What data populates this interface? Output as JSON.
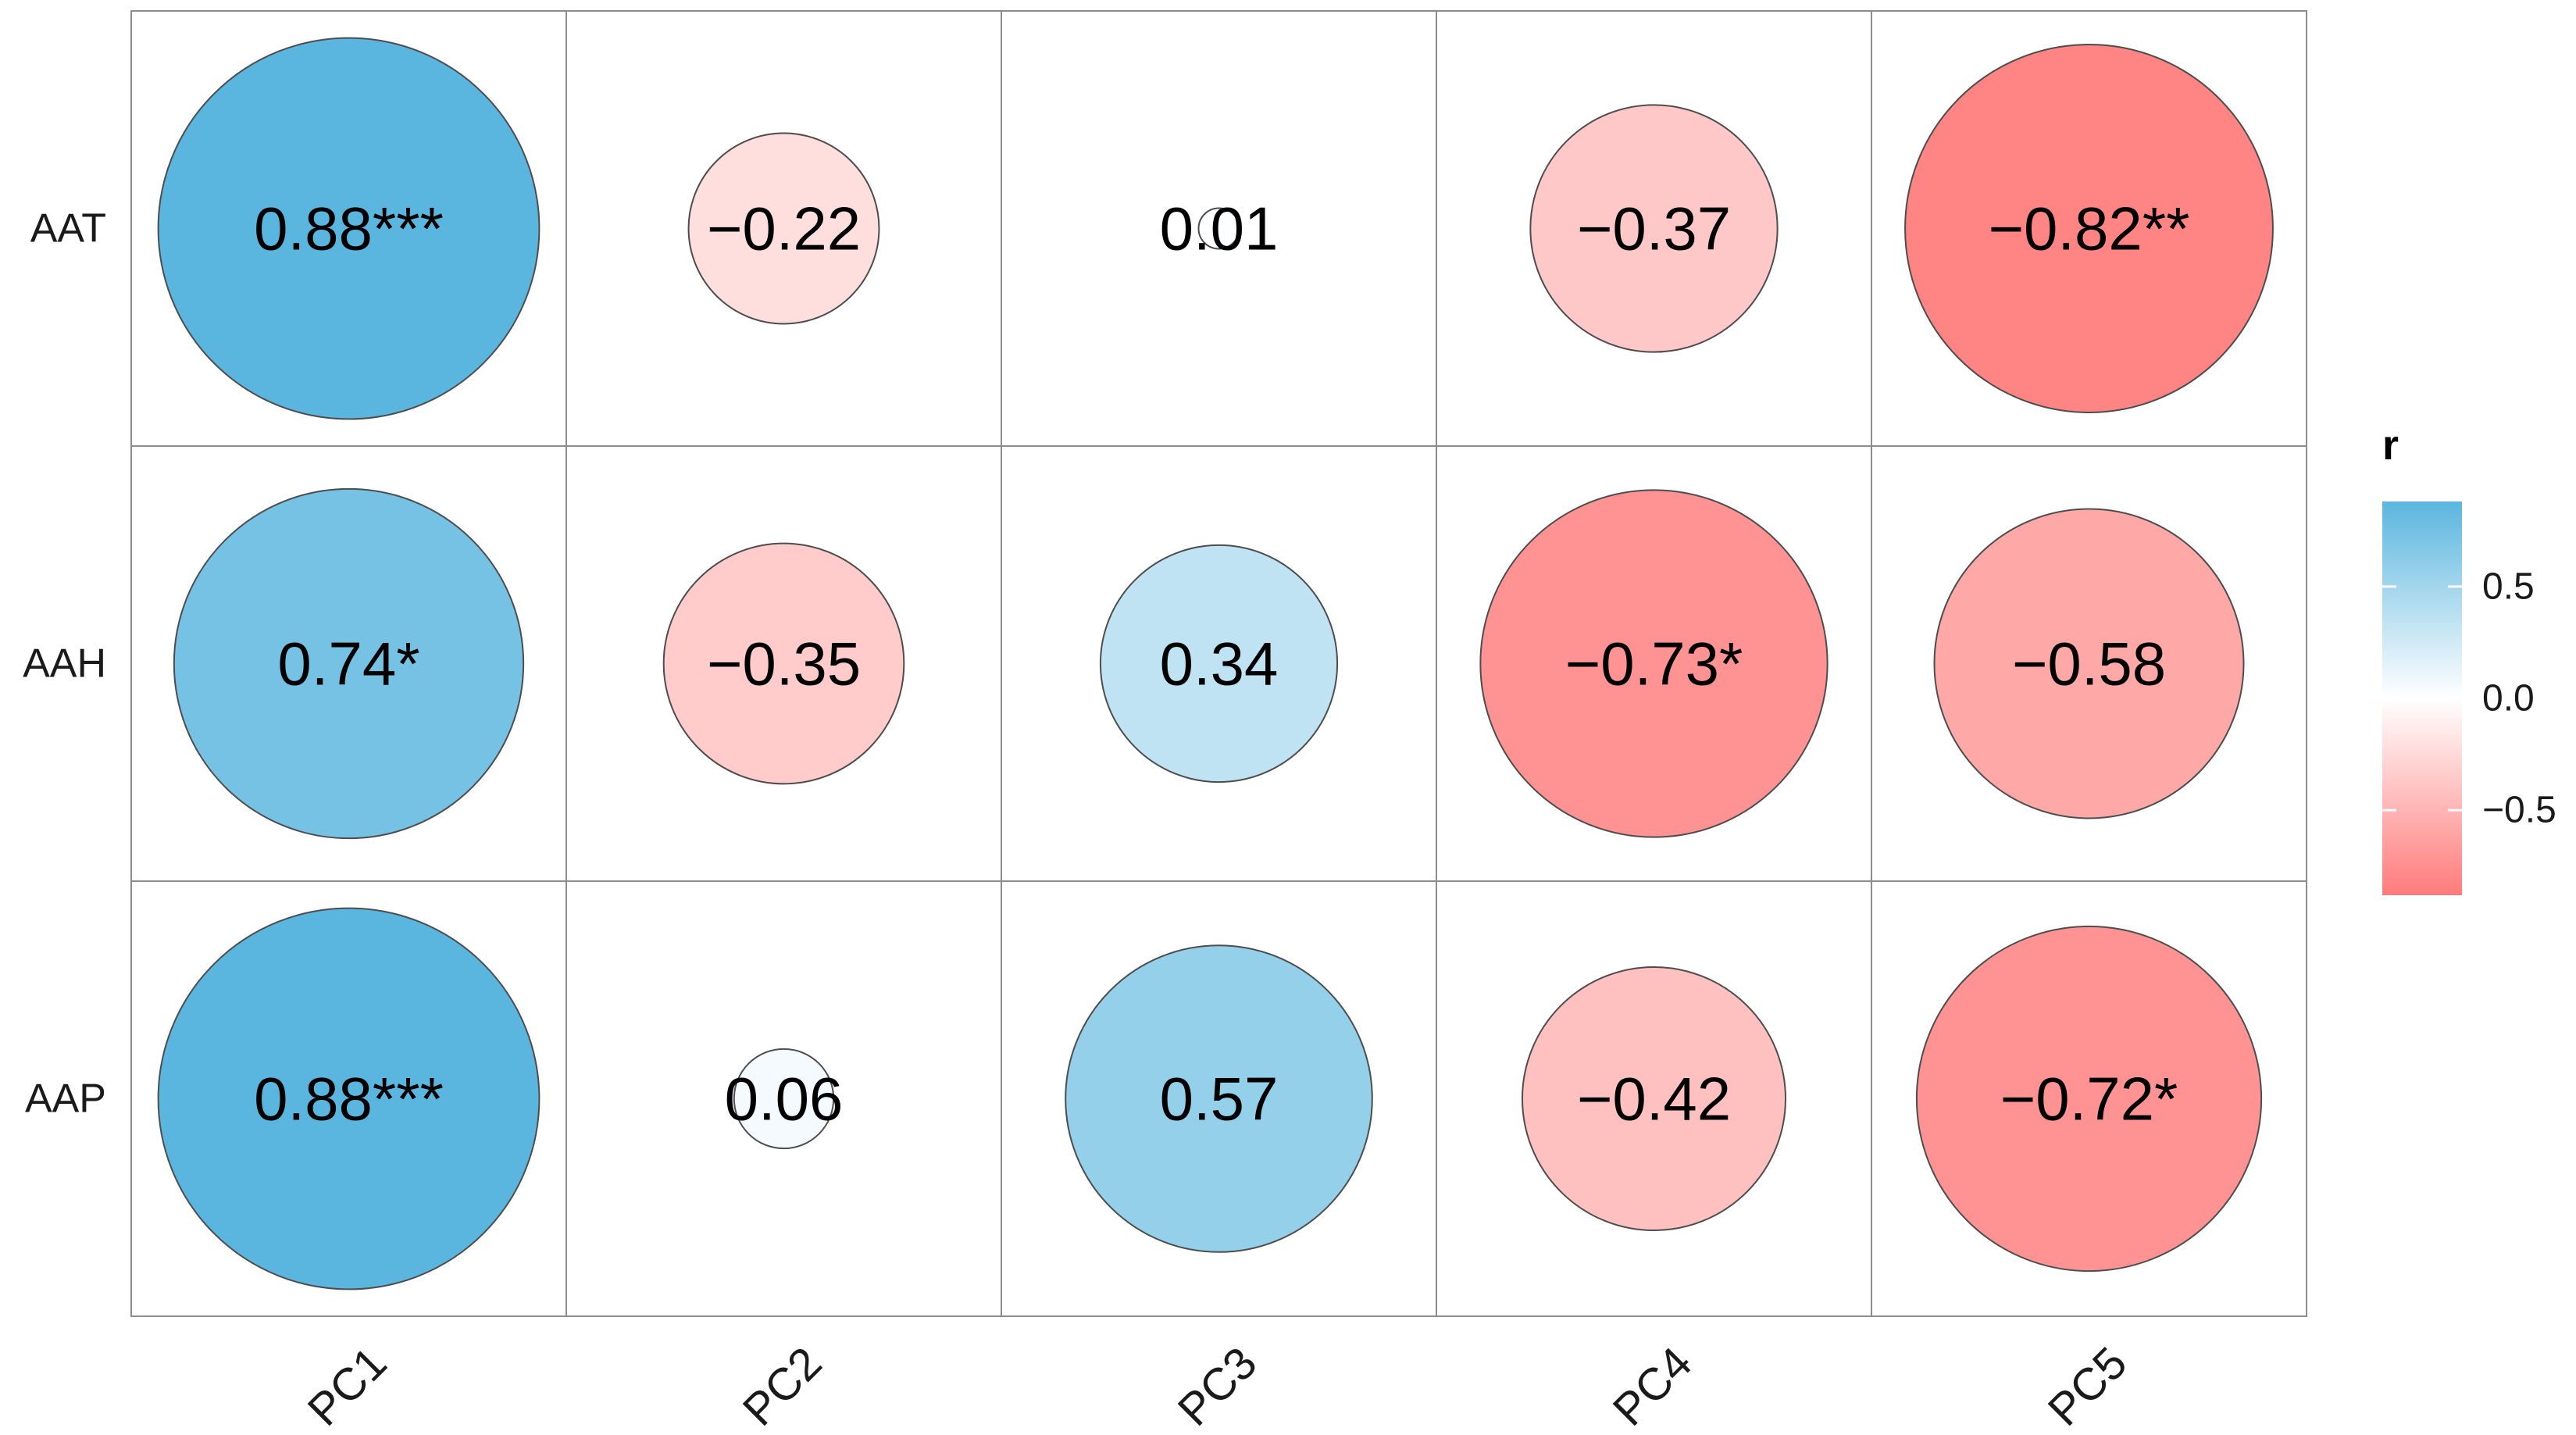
{
  "chart_data": {
    "type": "heatmap",
    "subtype": "correlation-circles",
    "rows": [
      "AAT",
      "AAH",
      "AAP"
    ],
    "columns": [
      "PC1",
      "PC2",
      "PC3",
      "PC4",
      "PC5"
    ],
    "values": [
      [
        0.88,
        -0.22,
        0.01,
        -0.37,
        -0.82
      ],
      [
        0.74,
        -0.35,
        0.34,
        -0.73,
        -0.58
      ],
      [
        0.88,
        0.06,
        0.57,
        -0.42,
        -0.72
      ]
    ],
    "labels": [
      [
        "0.88***",
        "−0.22",
        "0.01",
        "−0.37",
        "−0.82**"
      ],
      [
        "0.74*",
        "−0.35",
        "0.34",
        "−0.73*",
        "−0.58"
      ],
      [
        "0.88***",
        "0.06",
        "0.57",
        "−0.42",
        "−0.72*"
      ]
    ],
    "legend": {
      "title": "r",
      "ticks": [
        {
          "value": 0.5,
          "label": "0.5"
        },
        {
          "value": 0.0,
          "label": "0.0"
        },
        {
          "value": -0.5,
          "label": "−0.5"
        }
      ],
      "range": [
        -0.88,
        0.88
      ],
      "placement": "right"
    },
    "colors": {
      "positive": "#5bb6df",
      "zero": "#ffffff",
      "negative": "#ff7b7b",
      "grid": "#8c8c8c",
      "circle_stroke": "#4d4d4d"
    },
    "title": "",
    "xlabel": "",
    "ylabel": ""
  }
}
